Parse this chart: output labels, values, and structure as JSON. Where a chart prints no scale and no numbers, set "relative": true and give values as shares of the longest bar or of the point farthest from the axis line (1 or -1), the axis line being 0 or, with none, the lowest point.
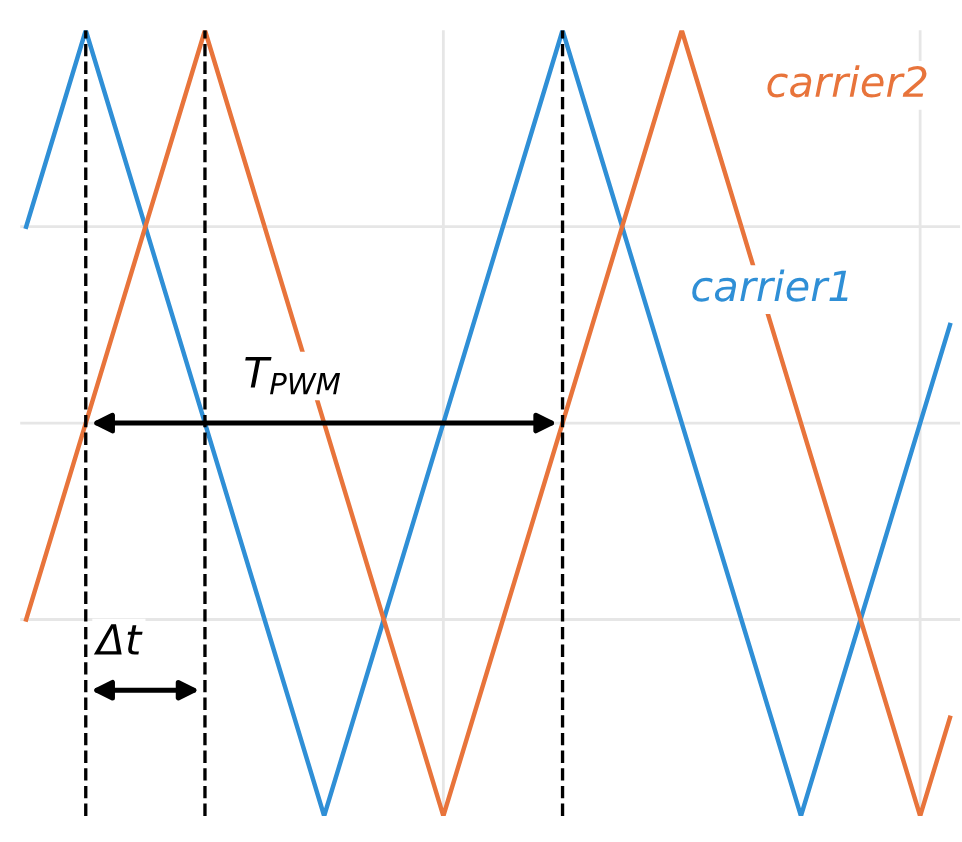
{
  "chart_data": {
    "type": "line",
    "relative": true,
    "grid": true,
    "line_style": "solid",
    "marker": "none",
    "legend": false,
    "categories": [
      null,
      null,
      null,
      null,
      null,
      null,
      null,
      null,
      null,
      null,
      null,
      null,
      null,
      null,
      null,
      null,
      null,
      null,
      null,
      null,
      null,
      null,
      null,
      null,
      null,
      null,
      null,
      null,
      null,
      null,
      null,
      null
    ],
    "series": [
      {
        "color": "#2f8fd6",
        "values": [
          0.75,
          0.875,
          1,
          0.875,
          0.75,
          0.625,
          0.5,
          0.375,
          0.25,
          0.125,
          0,
          0.125,
          0.25,
          0.375,
          0.5,
          0.625,
          0.75,
          0.875,
          1,
          0.875,
          0.75,
          0.625,
          0.5,
          0.375,
          0.25,
          0.125,
          0,
          0.125,
          0.25,
          0.375,
          0.5,
          0.625
        ]
      },
      {
        "color": "#e8743b",
        "values": [
          0.25,
          0.375,
          0.5,
          0.625,
          0.75,
          0.875,
          1,
          0.875,
          0.75,
          0.625,
          0.5,
          0.375,
          0.25,
          0.125,
          0,
          0.125,
          0.25,
          0.375,
          0.5,
          0.625,
          0.75,
          0.875,
          1,
          0.875,
          0.75,
          0.625,
          0.5,
          0.375,
          0.25,
          0.125,
          0,
          0.125
        ]
      }
    ],
    "annotations": [
      "carrier2",
      "carrier1",
      "T$_{PWM}$",
      "Δt"
    ]
  }
}
